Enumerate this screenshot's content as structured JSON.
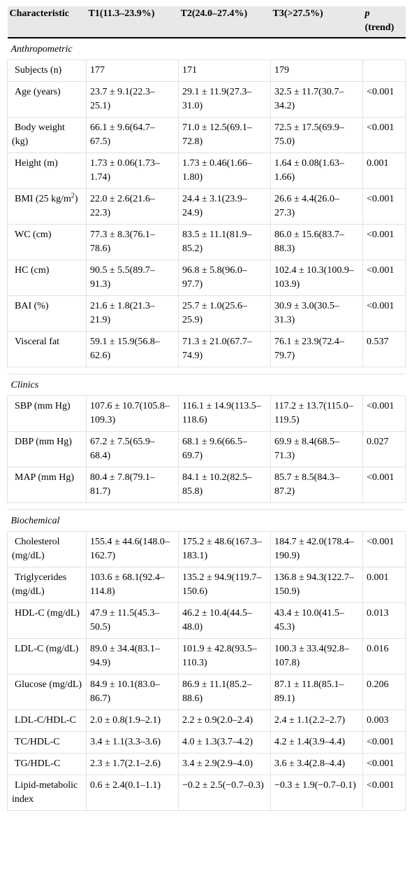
{
  "table": {
    "header": [
      "Characteristic",
      "T1(11.3–23.9%)",
      "T2(24.0–27.4%)",
      "T3(>27.5%)"
    ],
    "p_label": "p",
    "p_suffix": "(trend)",
    "sections": [
      {
        "title": "Anthropometric",
        "rows": [
          [
            "Subjects (n)",
            177,
            171,
            179
          ],
          [
            "Age (years)",
            "23.7 ± 9.1(22.3–25.1)",
            "29.1 ± 11.9(27.3–31.0)",
            "32.5 ± 11.7(30.7–34.2)",
            "<0.001"
          ],
          [
            "Body weight (kg)",
            "66.1 ± 9.6(64.7–67.5)",
            "71.0 ± 12.5(69.1–72.8)",
            "72.5 ± 17.5(69.9–75.0)",
            "<0.001"
          ],
          [
            "Height (m)",
            "1.73 ± 0.06(1.73–1.74)",
            "1.73 ± 0.46(1.66–1.80)",
            "1.64 ± 0.08(1.63–1.66)",
            "0.001"
          ],
          [
            {
              "text": "BMI (25 kg/m",
              "sup": "2",
              "tail": ")"
            },
            "22.0 ± 2.6(21.6–22.3)",
            "24.4 ± 3.1(23.9–24.9)",
            "26.6 ± 4.4(26.0–27.3)",
            "<0.001"
          ],
          [
            "WC (cm)",
            "77.3 ± 8.3(76.1–78.6)",
            "83.5 ± 11.1(81.9–85.2)",
            "86.0 ± 15.6(83.7–88.3)",
            "<0.001"
          ],
          [
            "HC (cm)",
            "90.5 ± 5.5(89.7–91.3)",
            "96.8 ± 5.8(96.0–97.7)",
            "102.4 ± 10.3(100.9–103.9)",
            "<0.001"
          ],
          [
            "BAI (%)",
            "21.6 ± 1.8(21.3–21.9)",
            "25.7 ± 1.0(25.6–25.9)",
            "30.9 ± 3.0(30.5–31.3)",
            "<0.001"
          ],
          [
            "Visceral fat",
            "59.1 ± 15.9(56.8–62.6)",
            "71.3 ± 21.0(67.7–74.9)",
            "76.1 ± 23.9(72.4–79.7)",
            "0.537"
          ]
        ]
      },
      {
        "title": "Clinics",
        "rows": [
          [
            "SBP (mm Hg)",
            "107.6 ± 10.7(105.8–109.3)",
            "116.1 ± 14.9(113.5–118.6)",
            "117.2 ± 13.7(115.0–119.5)",
            "<0.001"
          ],
          [
            "DBP (mm Hg)",
            "67.2 ± 7.5(65.9–68.4)",
            "68.1 ± 9.6(66.5–69.7)",
            "69.9 ± 8.4(68.5–71.3)",
            "0.027"
          ],
          [
            "MAP (mm Hg)",
            "80.4 ± 7.8(79.1–81.7)",
            "84.1 ± 10.2(82.5–85.8)",
            "85.7 ± 8.5(84.3–87.2)",
            "<0.001"
          ]
        ]
      },
      {
        "title": "Biochemical",
        "rows": [
          [
            "Cholesterol (mg/dL)",
            "155.4 ± 44.6(148.0–162.7)",
            "175.2 ± 48.6(167.3–183.1)",
            "184.7 ± 42.0(178.4–190.9)",
            "<0.001"
          ],
          [
            "Triglycerides (mg/dL)",
            "103.6 ± 68.1(92.4–114.8)",
            "135.2 ± 94.9(119.7–150.6)",
            "136.8 ± 94.3(122.7–150.9)",
            "0.001"
          ],
          [
            "HDL-C (mg/dL)",
            "47.9 ± 11.5(45.3–50.5)",
            "46.2 ± 10.4(44.5–48.0)",
            "43.4 ± 10.0(41.5–45.3)",
            "0.013"
          ],
          [
            "LDL-C (mg/dL)",
            "89.0 ± 34.4(83.1–94.9)",
            "101.9 ± 42.8(93.5–110.3)",
            "100.3 ± 33.4(92.8–107.8)",
            "0.016"
          ],
          [
            "Glucose (mg/dL)",
            "84.9 ± 10.1(83.0–86.7)",
            "86.9 ± 11.1(85.2–88.6)",
            "87.1 ± 11.8(85.1–89.1)",
            "0.206"
          ],
          [
            "LDL-C/HDL-C",
            "2.0 ± 0.8(1.9–2.1)",
            "2.2 ± 0.9(2.0–2.4)",
            "2.4 ± 1.1(2.2–2.7)",
            "0.003"
          ],
          [
            "TC/HDL-C",
            "3.4 ± 1.1(3.3–3.6)",
            "4.0 ± 1.3(3.7–4.2)",
            "4.2 ± 1.4(3.9–4.4)",
            "<0.001"
          ],
          [
            "TG/HDL-C",
            "2.3 ± 1.7(2.1–2.6)",
            "3.4 ± 2.9(2.9–4.0)",
            "3.6 ± 3.4(2.8–4.4)",
            "<0.001"
          ],
          [
            "Lipid-metabolic index",
            "0.6 ± 2.4(0.1–1.1)",
            "−0.2 ± 2.5(−0.7–0.3)",
            "−0.3 ± 1.9(−0.7–0.1)",
            "<0.001"
          ]
        ]
      }
    ]
  }
}
